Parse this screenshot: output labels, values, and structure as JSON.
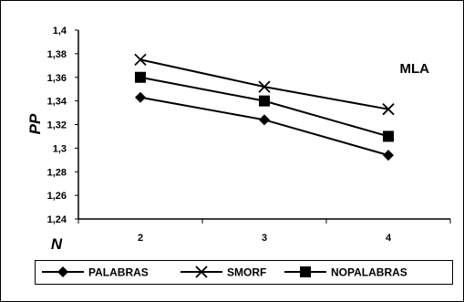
{
  "chart_data": {
    "type": "line",
    "annotation": "MLA",
    "xlabel": "N",
    "ylabel": "PP",
    "x": [
      "2",
      "3",
      "4"
    ],
    "y_ticks": [
      "1,24",
      "1,26",
      "1,28",
      "1,3",
      "1,32",
      "1,34",
      "1,36",
      "1,38",
      "1,4"
    ],
    "ylim": [
      1.24,
      1.4
    ],
    "grid": false,
    "legend_position": "bottom",
    "series": [
      {
        "name": "PALABRAS",
        "marker": "diamond",
        "values": [
          1.343,
          1.324,
          1.294
        ]
      },
      {
        "name": "SMORF",
        "marker": "x",
        "values": [
          1.375,
          1.352,
          1.333
        ]
      },
      {
        "name": "NOPALABRAS",
        "marker": "square",
        "values": [
          1.36,
          1.34,
          1.31
        ]
      }
    ],
    "colors": {
      "line": "#000000",
      "background": "#ffffff"
    }
  }
}
